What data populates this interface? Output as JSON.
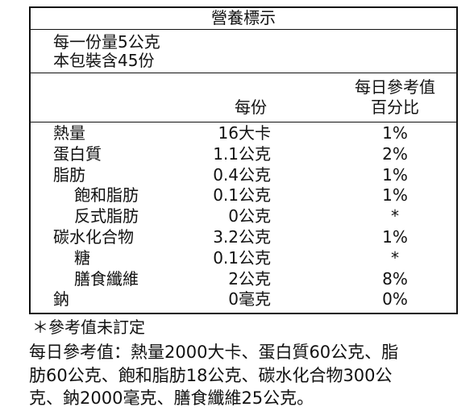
{
  "title": "營養標示",
  "serving": [
    "每一份量5公克",
    "本包裝含45份"
  ],
  "header": {
    "per_serving": "每份",
    "daily": [
      "每日參考值",
      "百分比"
    ]
  },
  "rows": [
    {
      "name": "熱量",
      "amount": "16大卡",
      "percent": "1%"
    },
    {
      "name": "蛋白質",
      "amount": "1.1公克",
      "percent": "2%"
    },
    {
      "name": "脂肪",
      "amount": "0.4公克",
      "percent": "1%"
    },
    {
      "name": "飽和脂肪",
      "amount": "0.1公克",
      "percent": "1%"
    },
    {
      "name": "反式脂肪",
      "amount": "0公克",
      "percent": "*"
    },
    {
      "name": "碳水化合物",
      "amount": "3.2公克",
      "percent": "1%"
    },
    {
      "name": "糖",
      "amount": "0.1公克",
      "percent": "*"
    },
    {
      "name": "膳食纖維",
      "amount": "2公克",
      "percent": "8%"
    },
    {
      "name": "鈉",
      "amount": "0毫克",
      "percent": "0%"
    }
  ],
  "footnote": "＊參考值未訂定",
  "reference": [
    "每日參考值：熱量2000大卡、蛋白質60公克、脂",
    "肪60公克、飽和脂肪18公克、碳水化合物300公",
    "克、鈉2000毫克、膳食纖維25公克。"
  ]
}
